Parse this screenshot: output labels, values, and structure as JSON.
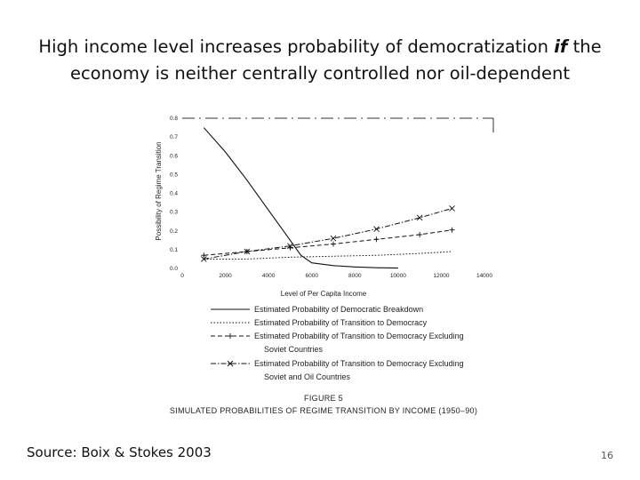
{
  "slide": {
    "title_pre": "High income level increases probability of democratization ",
    "title_em": "if",
    "title_post": " the economy is neither centrally controlled nor oil-dependent",
    "source": "Source: Boix & Stokes 2003",
    "page_number": "16"
  },
  "chart_data": {
    "type": "line",
    "xlabel": "Level of Per Capita Income",
    "ylabel": "Possibility of Regime Transition",
    "xlim": [
      0,
      14000
    ],
    "ylim": [
      0,
      0.8
    ],
    "x_ticks": [
      "0",
      "2000",
      "4000",
      "6000",
      "8000",
      "10000",
      "12000",
      "14000"
    ],
    "y_ticks": [
      "0.0",
      "0.1",
      "0.2",
      "0.3",
      "0.4",
      "0.5",
      "0.6",
      "0.7",
      "0.8"
    ],
    "series": [
      {
        "name": "Estimated Probability of Democratic Breakdown",
        "style": "solid",
        "x": [
          1000,
          2000,
          3000,
          4000,
          5000,
          5500,
          6000,
          7000,
          8000,
          9000,
          10000
        ],
        "y": [
          0.75,
          0.62,
          0.47,
          0.31,
          0.15,
          0.07,
          0.03,
          0.015,
          0.008,
          0.004,
          0.002
        ]
      },
      {
        "name": "Estimated Probability of Transition to Democracy",
        "style": "dotted",
        "x": [
          1000,
          3000,
          5000,
          7000,
          9000,
          11000,
          12500
        ],
        "y": [
          0.05,
          0.05,
          0.06,
          0.065,
          0.07,
          0.08,
          0.09
        ]
      },
      {
        "name": "Estimated Probability of Transition to Democracy Excluding Soviet Countries",
        "style": "dashed",
        "marker": "+",
        "x": [
          1000,
          3000,
          5000,
          7000,
          9000,
          11000,
          12500
        ],
        "y": [
          0.07,
          0.09,
          0.11,
          0.13,
          0.155,
          0.18,
          0.205
        ]
      },
      {
        "name": "Estimated Probability of Transition to Democracy Excluding Soviet and Oil Countries",
        "style": "dash-dot",
        "marker": "x",
        "x": [
          1000,
          3000,
          5000,
          7000,
          9000,
          11000,
          12500
        ],
        "y": [
          0.05,
          0.09,
          0.12,
          0.16,
          0.21,
          0.27,
          0.32
        ]
      }
    ],
    "legend": [
      {
        "line1": "Estimated Probability of Democratic Breakdown",
        "line2": ""
      },
      {
        "line1": "Estimated Probability of Transition to Democracy",
        "line2": ""
      },
      {
        "line1": "Estimated Probability of Transition to Democracy Excluding",
        "line2": "Soviet Countries"
      },
      {
        "line1": "Estimated Probability of Transition to Democracy Excluding",
        "line2": "Soviet and Oil Countries"
      }
    ],
    "legend_position": "below",
    "figure_label": "FIGURE 5",
    "figure_caption": "SIMULATED PROBABILITIES OF REGIME TRANSITION BY INCOME (1950–90)"
  }
}
